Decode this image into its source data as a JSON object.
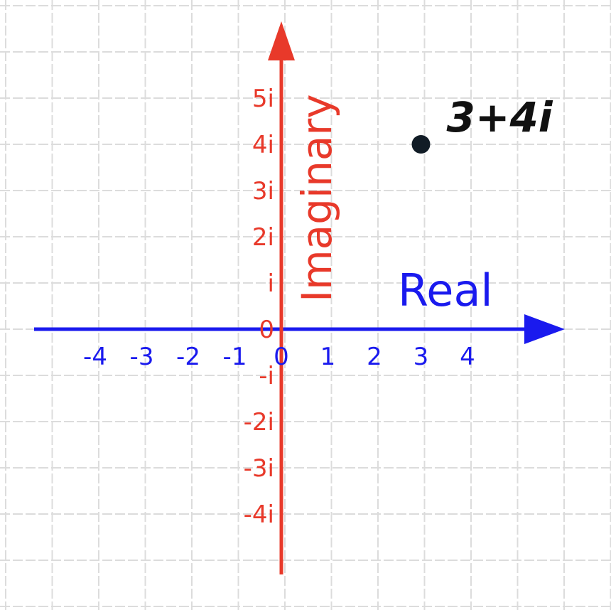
{
  "diagram": {
    "real_axis_label": "Real",
    "imaginary_axis_label": "Imaginary",
    "real_ticks": [
      "-4",
      "-3",
      "-2",
      "-1",
      "0",
      "1",
      "2",
      "3",
      "4"
    ],
    "imaginary_ticks_positive": [
      "0",
      "i",
      "2i",
      "3i",
      "4i",
      "5i"
    ],
    "imaginary_ticks_negative": [
      "-i",
      "-2i",
      "-3i",
      "-4i"
    ],
    "point": {
      "label": "3+4i",
      "real": 3,
      "imaginary": 4
    },
    "colors": {
      "real_axis": "#1a1aee",
      "imaginary_axis": "#e8392a",
      "point": "#111c26",
      "grid": "#dcdcdc"
    }
  }
}
